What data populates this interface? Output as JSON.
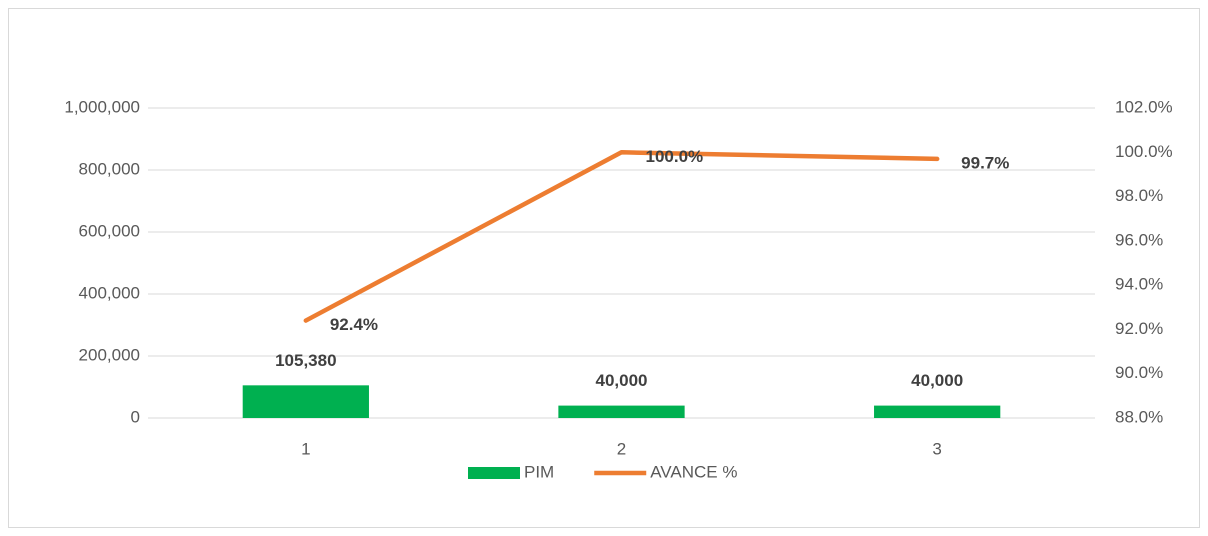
{
  "chart_data": {
    "type": "bar",
    "categories": [
      "1",
      "2",
      "3"
    ],
    "series": [
      {
        "name": "PIM",
        "type": "bar",
        "color": "#00b050",
        "values": [
          105380,
          40000,
          40000
        ],
        "value_labels": [
          "105,380",
          "40,000",
          "40,000"
        ]
      },
      {
        "name": "AVANCE %",
        "type": "line",
        "axis": "y2",
        "color": "#ed7d31",
        "values": [
          92.4,
          100.0,
          99.7
        ],
        "value_labels": [
          "92.4%",
          "100.0%",
          "99.7%"
        ]
      }
    ],
    "ylim": [
      0,
      1000000
    ],
    "yticks": [
      0,
      {
        "value": 200000,
        "label": "200,000"
      },
      {
        "value": 400000,
        "label": "400,000"
      },
      {
        "value": 600000,
        "label": "600,000"
      },
      {
        "value": 800000,
        "label": "800,000"
      },
      {
        "value": 1000000,
        "label": "1,000,000"
      }
    ],
    "y2lim": [
      88,
      102
    ],
    "y2ticks": [
      {
        "value": 88,
        "label": "88.0%"
      },
      {
        "value": 90,
        "label": "90.0%"
      },
      {
        "value": 92,
        "label": "92.0%"
      },
      {
        "value": 94,
        "label": "94.0%"
      },
      {
        "value": 96,
        "label": "96.0%"
      },
      {
        "value": 98,
        "label": "98.0%"
      },
      {
        "value": 100,
        "label": "100.0%"
      },
      {
        "value": 102,
        "label": "102.0%"
      }
    ],
    "grid": true,
    "legend": "bottom"
  }
}
